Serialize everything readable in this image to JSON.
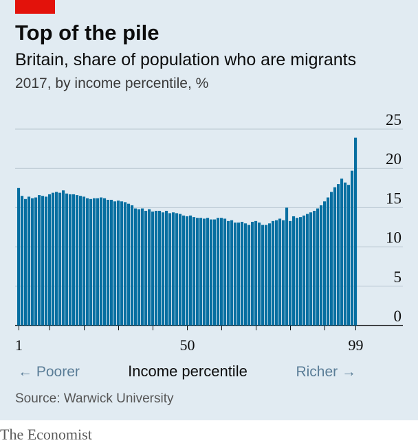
{
  "header": {
    "title": "Top of the pile",
    "subtitle": "Britain, share of population who are migrants",
    "units": "2017, by income percentile, %"
  },
  "footer": {
    "source": "Source: Warwick University",
    "brand": "The Economist"
  },
  "annotations": {
    "poorer": "← Poorer",
    "richer": "Richer →"
  },
  "colors": {
    "bar": "#076fa1",
    "panel": "#e1ebf2",
    "accent": "#e3120b",
    "grid": "#b7c6cf"
  },
  "chart_data": {
    "type": "bar",
    "xlabel": "Income percentile",
    "ylabel": "",
    "ylim": [
      0,
      25
    ],
    "yticks": [
      0,
      5,
      10,
      15,
      20,
      25
    ],
    "xticks": [
      1,
      50,
      99
    ],
    "grid": true,
    "categories": [
      1,
      2,
      3,
      4,
      5,
      6,
      7,
      8,
      9,
      10,
      11,
      12,
      13,
      14,
      15,
      16,
      17,
      18,
      19,
      20,
      21,
      22,
      23,
      24,
      25,
      26,
      27,
      28,
      29,
      30,
      31,
      32,
      33,
      34,
      35,
      36,
      37,
      38,
      39,
      40,
      41,
      42,
      43,
      44,
      45,
      46,
      47,
      48,
      49,
      50,
      51,
      52,
      53,
      54,
      55,
      56,
      57,
      58,
      59,
      60,
      61,
      62,
      63,
      64,
      65,
      66,
      67,
      68,
      69,
      70,
      71,
      72,
      73,
      74,
      75,
      76,
      77,
      78,
      79,
      80,
      81,
      82,
      83,
      84,
      85,
      86,
      87,
      88,
      89,
      90,
      91,
      92,
      93,
      94,
      95,
      96,
      97,
      98,
      99
    ],
    "values": [
      17.5,
      16.5,
      16.1,
      16.4,
      16.2,
      16.3,
      16.6,
      16.5,
      16.4,
      16.7,
      16.9,
      17.0,
      16.9,
      17.2,
      16.8,
      16.7,
      16.7,
      16.6,
      16.5,
      16.4,
      16.2,
      16.1,
      16.2,
      16.2,
      16.3,
      16.2,
      16.0,
      16.0,
      15.8,
      15.9,
      15.8,
      15.7,
      15.5,
      15.3,
      14.9,
      14.8,
      14.9,
      14.6,
      14.8,
      14.5,
      14.6,
      14.6,
      14.4,
      14.6,
      14.3,
      14.4,
      14.3,
      14.2,
      14.0,
      13.9,
      14.0,
      13.8,
      13.7,
      13.7,
      13.6,
      13.7,
      13.5,
      13.5,
      13.7,
      13.7,
      13.6,
      13.3,
      13.4,
      13.1,
      13.1,
      13.2,
      13.0,
      12.8,
      13.2,
      13.3,
      13.1,
      12.8,
      12.8,
      13.0,
      13.3,
      13.4,
      13.6,
      13.4,
      15.0,
      13.3,
      13.9,
      13.7,
      13.8,
      14.0,
      14.2,
      14.4,
      14.6,
      14.9,
      15.3,
      15.8,
      16.3,
      17.0,
      17.6,
      18.0,
      18.7,
      18.2,
      17.9,
      19.7,
      23.9
    ]
  }
}
